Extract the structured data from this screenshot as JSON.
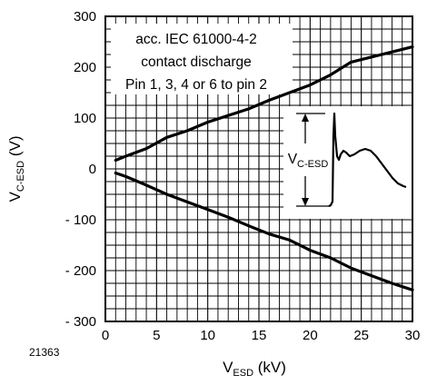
{
  "chart_data": {
    "type": "line",
    "title": "",
    "figure_number": "21363",
    "xlabel": {
      "main": "V",
      "sub": "ESD",
      "unit": " (kV)"
    },
    "ylabel": {
      "main": "V",
      "sub": "C-ESD",
      "unit": " (V)"
    },
    "xlim": [
      0,
      30
    ],
    "ylim": [
      -300,
      300
    ],
    "x_ticks": [
      "0",
      "5",
      "10",
      "15",
      "20",
      "25",
      "30"
    ],
    "y_ticks": [
      "300",
      "200",
      "100",
      "0",
      "- 100",
      "- 200",
      "- 300"
    ],
    "grid": true,
    "annotation": [
      "acc. IEC 61000-4-2",
      "contact discharge",
      "Pin 1, 3, 4 or 6 to pin 2"
    ],
    "inset": {
      "label_main": "V",
      "label_sub": "C-ESD",
      "description": ""
    },
    "series": [
      {
        "x": [
          1,
          2,
          4,
          6,
          8,
          10,
          12,
          14,
          16,
          18,
          20,
          22,
          24,
          26,
          28,
          30
        ],
        "y": [
          17,
          25,
          40,
          62,
          75,
          92,
          105,
          118,
          135,
          150,
          165,
          185,
          210,
          220,
          230,
          240
        ]
      },
      {
        "x": [
          1,
          2,
          4,
          6,
          8,
          10,
          12,
          14,
          16,
          18,
          20,
          22,
          24,
          26,
          28,
          30
        ],
        "y": [
          -8,
          -15,
          -32,
          -50,
          -65,
          -80,
          -95,
          -112,
          -128,
          -140,
          -160,
          -175,
          -195,
          -210,
          -225,
          -238
        ]
      }
    ]
  }
}
